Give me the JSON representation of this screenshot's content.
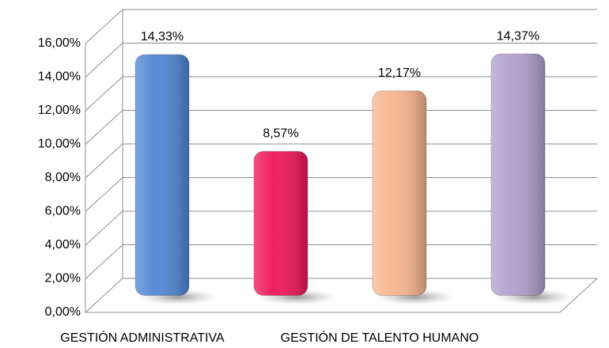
{
  "chart_data": {
    "type": "bar",
    "categories": [
      "GESTIÓN ADMINISTRATIVA",
      null,
      "GESTIÓN DE TALENTO HUMANO",
      null
    ],
    "values": [
      14.33,
      8.57,
      12.17,
      14.37
    ],
    "value_labels": [
      "14,33%",
      "8,57%",
      "12,17%",
      "14,37%"
    ],
    "colors": [
      "#4f86d4",
      "#f0145a",
      "#f8b58f",
      "#b0a0cc"
    ],
    "ylim": [
      0,
      16
    ],
    "yticks": [
      {
        "value": 0,
        "label": "0,00%"
      },
      {
        "value": 2,
        "label": "2,00%"
      },
      {
        "value": 4,
        "label": "4,00%"
      },
      {
        "value": 6,
        "label": "6,00%"
      },
      {
        "value": 8,
        "label": "8,00%"
      },
      {
        "value": 10,
        "label": "10,00%"
      },
      {
        "value": 12,
        "label": "12,00%"
      },
      {
        "value": 14,
        "label": "14,00%"
      },
      {
        "value": 16,
        "label": "16,00%"
      }
    ],
    "grid": true
  }
}
